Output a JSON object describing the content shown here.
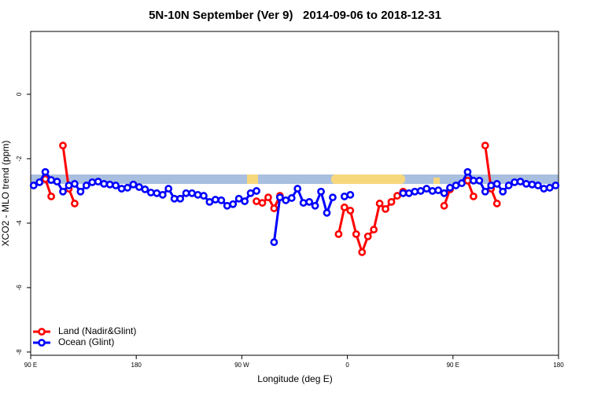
{
  "chart_data": {
    "type": "line",
    "title": "5N-10N September (Ver 9)   2014-09-06 to 2018-12-31",
    "x_label": "Longitude (deg E)",
    "y_label": "XCO2 - MLO trend (ppm)",
    "xlim": [
      90,
      540
    ],
    "ylim": [
      -8.1,
      1.95
    ],
    "xticks": [
      {
        "value": 90,
        "label": "90 E"
      },
      180,
      {
        "value": 270,
        "label": "90 W"
      },
      {
        "value": 360,
        "label": "0"
      },
      {
        "value": 450,
        "label": "90 E"
      },
      {
        "value": 540,
        "label": "180"
      }
    ],
    "yticks": [
      0,
      -2,
      -4,
      -6,
      -8
    ],
    "legend": "bottomleft",
    "x": [
      92.5,
      97.5,
      102.5,
      107.5,
      112.5,
      117.5,
      122.5,
      127.5,
      132.5,
      137.5,
      142.5,
      147.5,
      152.5,
      157.5,
      162.5,
      167.5,
      172.5,
      177.5,
      182.5,
      187.5,
      192.5,
      197.5,
      202.5,
      207.5,
      212.5,
      217.5,
      222.5,
      227.5,
      232.5,
      237.5,
      242.5,
      247.5,
      252.5,
      257.5,
      262.5,
      267.5,
      272.5,
      277.5,
      282.5,
      287.5,
      292.5,
      297.5,
      302.5,
      307.5,
      312.5,
      317.5,
      322.5,
      327.5,
      332.5,
      337.5,
      342.5,
      347.5,
      352.5,
      357.5,
      362.5,
      367.5,
      372.5,
      377.5,
      382.5,
      387.5,
      392.5,
      397.5,
      402.5,
      407.5,
      412.5,
      417.5,
      422.5,
      427.5,
      432.5,
      437.5,
      442.5,
      447.5,
      452.5,
      457.5,
      462.5,
      467.5,
      472.5,
      477.5,
      482.5,
      487.5,
      492.5,
      497.5,
      502.5,
      507.5,
      512.5,
      517.5,
      522.5,
      527.5,
      532.5,
      537.5
    ],
    "series": [
      {
        "name": "Land (Nadir&Glint)",
        "color": "#ff0000",
        "values": [
          null,
          null,
          -2.63,
          -3.17,
          null,
          -1.59,
          -2.93,
          -3.39,
          null,
          null,
          null,
          null,
          null,
          null,
          null,
          null,
          null,
          null,
          null,
          null,
          null,
          null,
          null,
          null,
          null,
          null,
          null,
          null,
          null,
          null,
          null,
          null,
          null,
          null,
          null,
          null,
          null,
          null,
          -3.32,
          -3.37,
          -3.2,
          -3.54,
          -3.15,
          null,
          null,
          null,
          null,
          null,
          null,
          null,
          null,
          null,
          -4.34,
          -3.51,
          -3.61,
          -4.34,
          -4.9,
          -4.41,
          -4.2,
          -3.39,
          -3.56,
          -3.34,
          -3.15,
          -3.02,
          null,
          null,
          null,
          null,
          null,
          null,
          -3.46,
          -2.95,
          null,
          null,
          -2.68,
          -3.17,
          null,
          -1.59,
          -2.93,
          -3.39,
          null,
          null,
          null,
          null,
          null,
          null,
          null,
          null,
          null,
          null
        ]
      },
      {
        "name": "Ocean (Glint)",
        "color": "#0000ff",
        "values": [
          -2.83,
          -2.73,
          -2.41,
          -2.66,
          -2.71,
          -3.02,
          -2.83,
          -2.78,
          -3.02,
          -2.83,
          -2.73,
          -2.71,
          -2.78,
          -2.8,
          -2.83,
          -2.93,
          -2.9,
          -2.8,
          -2.88,
          -2.95,
          -3.05,
          -3.07,
          -3.12,
          -2.93,
          -3.24,
          -3.24,
          -3.07,
          -3.07,
          -3.12,
          -3.15,
          -3.34,
          -3.27,
          -3.29,
          -3.46,
          -3.41,
          -3.24,
          -3.32,
          -3.07,
          -3.0,
          null,
          null,
          -4.59,
          -3.2,
          -3.29,
          -3.22,
          -2.93,
          -3.37,
          -3.34,
          -3.46,
          -3.02,
          -3.68,
          -3.2,
          null,
          -3.17,
          -3.12,
          null,
          null,
          null,
          null,
          null,
          null,
          null,
          null,
          -3.07,
          -3.07,
          -3.02,
          -3.0,
          -2.93,
          -3.0,
          -2.98,
          -3.07,
          -2.9,
          -2.83,
          -2.76,
          -2.41,
          -2.68,
          -2.68,
          -3.02,
          -2.83,
          -2.78,
          -3.02,
          -2.83,
          -2.73,
          -2.71,
          -2.78,
          -2.8,
          -2.83,
          -2.93,
          -2.9,
          -2.83
        ]
      }
    ]
  }
}
